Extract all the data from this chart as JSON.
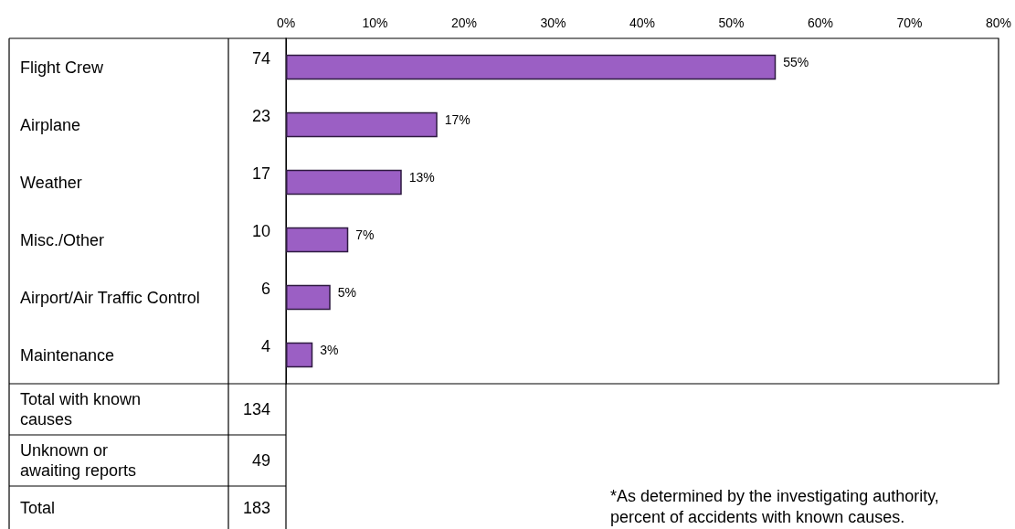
{
  "chart_data": {
    "type": "bar",
    "orientation": "horizontal",
    "categories": [
      "Flight Crew",
      "Airplane",
      "Weather",
      "Misc./Other",
      "Airport/Air Traffic Control",
      "Maintenance"
    ],
    "values": [
      55,
      17,
      13,
      7,
      5,
      3
    ],
    "value_labels": [
      "55%",
      "17%",
      "13%",
      "7%",
      "5%",
      "3%"
    ],
    "color": "#9b5fc4",
    "xlim": [
      0,
      80
    ],
    "xticks": [
      {
        "value": 0,
        "label": "0%"
      },
      {
        "value": 10,
        "label": "10%"
      },
      {
        "value": 20,
        "label": "20%"
      },
      {
        "value": 30,
        "label": "30%"
      },
      {
        "value": 40,
        "label": "40%"
      },
      {
        "value": 50,
        "label": "50%"
      },
      {
        "value": 60,
        "label": "60%"
      },
      {
        "value": 70,
        "label": "70%"
      },
      {
        "value": 80,
        "label": "80%"
      }
    ],
    "grid": false,
    "annotations": [
      "74",
      "23",
      "17",
      "10",
      "6",
      "4",
      "Total with known causes",
      "134",
      "Unknown or awaiting reports",
      "49",
      "Total",
      "183",
      "*As determined by the investigating authority, percent of accidents with known causes."
    ]
  }
}
